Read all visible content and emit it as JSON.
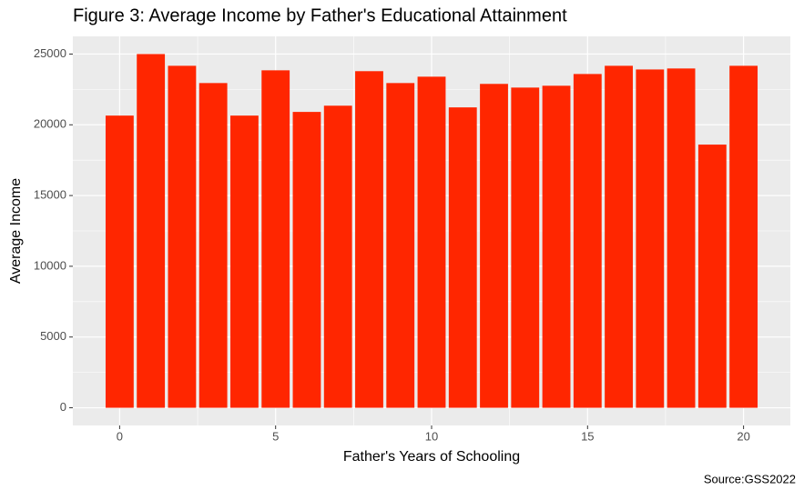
{
  "chart_data": {
    "type": "bar",
    "title": "Figure 3: Average Income by Father's Educational Attainment",
    "x_label": "Father's Years of Schooling",
    "y_label": "Average Income",
    "caption": "Source:GSS2022",
    "x": [
      0,
      1,
      2,
      3,
      4,
      5,
      6,
      7,
      8,
      9,
      10,
      11,
      12,
      13,
      14,
      15,
      16,
      17,
      18,
      19,
      20
    ],
    "values": [
      20650,
      25000,
      24170,
      22950,
      20650,
      23850,
      20910,
      21350,
      23790,
      22950,
      23400,
      21230,
      22890,
      22630,
      22760,
      23590,
      24170,
      23910,
      23980,
      18600,
      24170
    ],
    "color": "#ff2600",
    "xlim": [
      -1.5,
      21.5
    ],
    "xticks": [
      0,
      5,
      10,
      15,
      20
    ],
    "ylim": [
      -1250,
      26250
    ],
    "yticks": [
      0,
      5000,
      10000,
      15000,
      20000,
      25000
    ],
    "grid": true
  }
}
